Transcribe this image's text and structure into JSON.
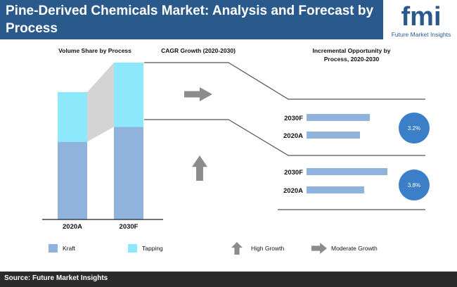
{
  "header": {
    "title": "Pine-Derived Chemicals Market: Analysis and Forecast by Process"
  },
  "logo": {
    "mark": "fmi",
    "caption": "Future Market Insights"
  },
  "colors": {
    "header_bg": "#2a5a8c",
    "kraft": "#8fb3dd",
    "tapping": "#8ee8fb",
    "arrow": "#8c8c8c",
    "bubble": "#3b7fc8",
    "bar": "#8fb3dd",
    "footer_bg": "#2b2b2b"
  },
  "footer": {
    "source": "Source: Future Market Insights"
  },
  "chart_data": [
    {
      "type": "bar",
      "title": "Volume Share by Process",
      "stacked": true,
      "categories": [
        "2020A",
        "2030F"
      ],
      "series": [
        {
          "name": "Kraft",
          "values": [
            61,
            59
          ]
        },
        {
          "name": "Tapping",
          "values": [
            39,
            41
          ]
        }
      ],
      "ylim": [
        0,
        100
      ]
    },
    {
      "type": "table",
      "title": "CAGR Growth (2020-2030)",
      "rows": [
        {
          "process": "Tapping",
          "growth": "Moderate Growth",
          "cagr": "3.2%"
        },
        {
          "process": "Kraft",
          "growth": "High Growth",
          "cagr": "3.8%"
        }
      ]
    },
    {
      "type": "bar",
      "orientation": "horizontal",
      "title": "Incremental Opportunity by Process, 2020-2030",
      "groups": [
        {
          "process": "Tapping",
          "categories": [
            "2030F",
            "2020A"
          ],
          "values": [
            90,
            76
          ]
        },
        {
          "process": "Kraft",
          "categories": [
            "2030F",
            "2020A"
          ],
          "values": [
            115,
            82
          ]
        }
      ]
    }
  ],
  "legend": [
    {
      "label": "Kraft",
      "icon": "square",
      "color": "kraft"
    },
    {
      "label": "Tapping",
      "icon": "square",
      "color": "tapping"
    },
    {
      "label": "High Growth",
      "icon": "up-arrow-icon"
    },
    {
      "label": "Moderate Growth",
      "icon": "right-arrow-icon"
    }
  ]
}
